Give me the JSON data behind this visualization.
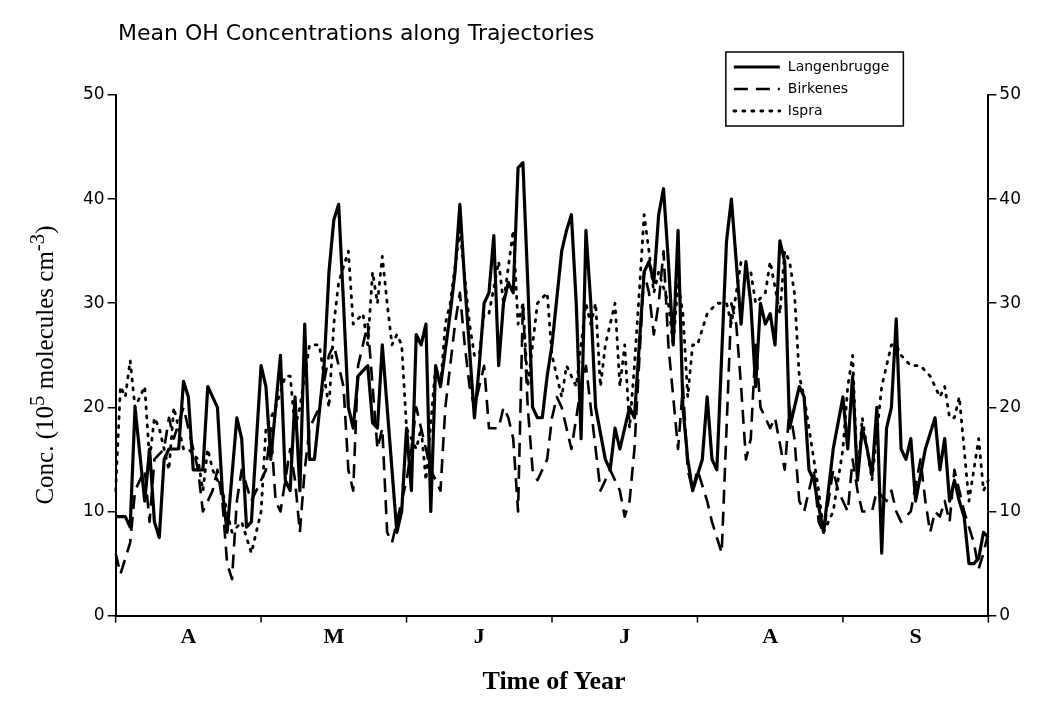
{
  "chart_data": {
    "type": "line",
    "title": "Mean OH Concentrations along Trajectories",
    "xlabel": "Time of Year",
    "ylabel": "Conc. (10$^{5}$ molecules cm$^{-3}$)",
    "categories": [
      null,
      null,
      null,
      null,
      null,
      null,
      null,
      null,
      null,
      null,
      null,
      null,
      null,
      null,
      null,
      "A",
      null,
      null,
      null,
      null,
      null,
      null,
      null,
      null,
      null,
      null,
      null,
      null,
      null,
      null,
      null,
      null,
      null,
      null,
      null,
      null,
      null,
      null,
      null,
      null,
      null,
      null,
      null,
      null,
      null,
      "M",
      null,
      null,
      null,
      null,
      null,
      null,
      null,
      null,
      null,
      null,
      null,
      null,
      null,
      null,
      null,
      null,
      null,
      null,
      null,
      null,
      null,
      null,
      null,
      null,
      null,
      null,
      null,
      null,
      null,
      "J",
      null,
      null,
      null,
      null,
      null,
      null,
      null,
      null,
      null,
      null,
      null,
      null,
      null,
      null,
      null,
      null,
      null,
      null,
      null,
      null,
      null,
      null,
      null,
      null,
      null,
      null,
      null,
      null,
      null,
      "J",
      null,
      null,
      null,
      null,
      null,
      null,
      null,
      null,
      null,
      null,
      null,
      null,
      null,
      null,
      null,
      null,
      null,
      null,
      null,
      null,
      null,
      null,
      null,
      null,
      null,
      null,
      null,
      null,
      null,
      "A",
      null,
      null,
      null,
      null,
      null,
      null,
      null,
      null,
      null,
      null,
      null,
      null,
      null,
      null,
      null,
      null,
      null,
      null,
      null,
      null,
      null,
      null,
      null,
      null,
      null,
      null,
      null,
      null,
      null,
      "S",
      null,
      null,
      null,
      null,
      null,
      null,
      null,
      null,
      null,
      null,
      null,
      null,
      null,
      null,
      null
    ],
    "ylim": [
      0,
      50
    ],
    "yticks": [
      0,
      10,
      20,
      30,
      40,
      50
    ],
    "y2lim": [
      0,
      50
    ],
    "y2ticks": [
      0,
      10,
      20,
      30,
      40,
      50
    ],
    "grid": false,
    "legend": "top right",
    "marker": "none",
    "series": [
      {
        "name": "Langenbrugge",
        "color": "#000000",
        "line_style": "solid",
        "values": [
          9.5,
          9.5,
          9.5,
          8.5,
          20,
          15.5,
          11,
          16,
          9,
          7.5,
          15,
          16,
          16,
          16,
          22.5,
          21,
          14,
          14,
          14,
          22,
          21,
          20,
          12,
          8,
          13.5,
          19,
          17,
          8.5,
          9,
          16.5,
          24,
          22,
          15,
          20,
          25,
          13,
          12,
          21,
          12,
          28,
          15,
          15,
          19.5,
          24,
          33,
          38,
          39.5,
          30,
          20,
          18,
          23,
          23.5,
          24,
          18.5,
          18,
          26,
          20,
          14,
          8,
          10,
          18,
          12,
          27,
          26,
          28,
          10,
          24,
          22,
          25.5,
          29,
          33,
          39.5,
          32,
          25.5,
          19,
          24,
          30,
          31,
          36.5,
          24,
          30,
          32,
          31,
          43,
          43.5,
          32,
          20,
          19,
          19,
          23,
          26,
          30.5,
          35,
          37,
          38.5,
          30,
          17,
          37,
          30,
          20,
          17.5,
          15,
          14,
          18,
          16,
          18,
          20,
          19,
          26,
          33,
          34,
          32,
          38.5,
          41,
          34,
          26,
          37,
          20,
          15,
          12,
          13.5,
          15,
          21,
          15,
          14,
          25,
          36,
          40,
          34,
          28,
          34,
          30,
          22,
          30,
          28,
          29,
          26,
          36,
          34,
          18,
          20,
          22,
          21,
          14,
          13,
          10.5,
          8,
          12,
          16,
          18.5,
          21,
          16,
          23,
          13,
          18,
          16,
          13.5,
          20,
          6,
          18,
          20,
          28.5,
          16,
          15,
          17,
          11,
          13.5,
          16,
          17.5,
          19,
          14,
          17,
          11,
          13,
          11,
          9.5,
          5,
          5,
          5.5,
          8,
          7.5
        ]
      },
      {
        "name": "Birkenes",
        "color": "#000000",
        "line_style": "dashed",
        "values": [
          6,
          4,
          5.5,
          7,
          12,
          13,
          14,
          9,
          15,
          15.5,
          16,
          19,
          17,
          18.5,
          20,
          18,
          16,
          14,
          10,
          11,
          12,
          14,
          11,
          5,
          3.5,
          11,
          14,
          12.5,
          11,
          12,
          13,
          14,
          18,
          11,
          10,
          13,
          16,
          13,
          8,
          14,
          18,
          19,
          20,
          22.5,
          25,
          26,
          24,
          22,
          14,
          12,
          24,
          26,
          28,
          22,
          16,
          18,
          8,
          7,
          9,
          11,
          13,
          16,
          20,
          18,
          16,
          14,
          13,
          12,
          20,
          24,
          28,
          31,
          26,
          22,
          20,
          22,
          24,
          18,
          18,
          18,
          20,
          19,
          17,
          10,
          30,
          20,
          14,
          13,
          14,
          15,
          19,
          21,
          20,
          18,
          16,
          19,
          22,
          24,
          20,
          16,
          12,
          13,
          14,
          13,
          12,
          9.5,
          11,
          16,
          24.5,
          33,
          31,
          27,
          30,
          35,
          26,
          21,
          16,
          22,
          14,
          12,
          14,
          12.5,
          11,
          9,
          7.5,
          6,
          18,
          30,
          28,
          22,
          15,
          17,
          26,
          20,
          19,
          18,
          19,
          16.5,
          14,
          20,
          17,
          11,
          10,
          12,
          14,
          9,
          8,
          11,
          14,
          12,
          11,
          10,
          15,
          12,
          10,
          10,
          10,
          12,
          11.5,
          11,
          12,
          10,
          9,
          9.5,
          10,
          12.5,
          15,
          11,
          8,
          10,
          9.5,
          11,
          9,
          14,
          12,
          10,
          8.5,
          7,
          4.5,
          6,
          8
        ]
      },
      {
        "name": "Ispra",
        "color": "#000000",
        "line_style": "dotted",
        "values": [
          12,
          22,
          21,
          24.5,
          20,
          21,
          22,
          15,
          19,
          18,
          16,
          14,
          20,
          18,
          16,
          16,
          15.5,
          15,
          12,
          16,
          14,
          13,
          12,
          10,
          8,
          8.5,
          9,
          7.5,
          6,
          8,
          10,
          18,
          19,
          20,
          21.5,
          23,
          23,
          18,
          20,
          23,
          26,
          26,
          26,
          23,
          20,
          28,
          32,
          33.5,
          35,
          28,
          28.5,
          29,
          26,
          33,
          30,
          34.5,
          30,
          26,
          27,
          26,
          18,
          17,
          16,
          18,
          13,
          18.5,
          24,
          22,
          28,
          30,
          33.5,
          37,
          32.5,
          28,
          25,
          25,
          29,
          29,
          31.5,
          34,
          30,
          33.5,
          37,
          28,
          30,
          22,
          26,
          30,
          30.5,
          31,
          25,
          23,
          21,
          24,
          23,
          22,
          26,
          30,
          28,
          30,
          22,
          26,
          28,
          30,
          22,
          26,
          18,
          24,
          31,
          38.5,
          35,
          31,
          33,
          31.5,
          30,
          26,
          32,
          29,
          21,
          26,
          26,
          27.5,
          29,
          29.5,
          30,
          30,
          30,
          28,
          31,
          34,
          33.5,
          33,
          30,
          30.5,
          31,
          34,
          31.5,
          29,
          35,
          34,
          31,
          23,
          21,
          18,
          15,
          12,
          8,
          9,
          10,
          13,
          16,
          22,
          25,
          13,
          19,
          16,
          13,
          17.5,
          22,
          24,
          26,
          26,
          25,
          24.5,
          24,
          24,
          24,
          23.5,
          23,
          22,
          21,
          22,
          19,
          19,
          21,
          16,
          11,
          14,
          17,
          12,
          13
        ]
      }
    ]
  }
}
